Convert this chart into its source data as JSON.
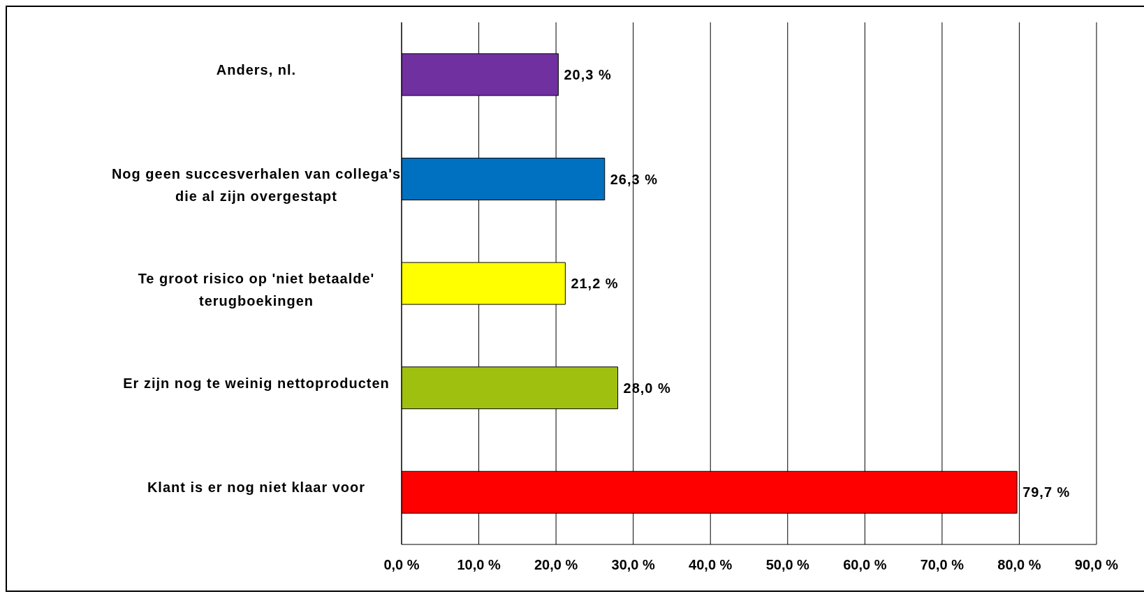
{
  "chart_data": {
    "type": "bar",
    "orientation": "horizontal",
    "categories": [
      "Anders, nl.",
      "Nog geen succesverhalen van collega's die al zijn overgestapt",
      "Te groot risico op 'niet betaalde' terugboekingen",
      "Er zijn nog te weinig nettoproducten",
      "Klant is er nog niet klaar voor"
    ],
    "values": [
      20.3,
      26.3,
      21.2,
      28.0,
      79.7
    ],
    "colors": [
      "#7030a0",
      "#0070c0",
      "#ffff00",
      "#a0c010",
      "#ff0000"
    ],
    "value_labels": [
      "20,3 %",
      "26,3 %",
      "21,2 %",
      "28,0 %",
      "79,7 %"
    ],
    "xlim": [
      0,
      90
    ],
    "xticks": [
      {
        "value": 0,
        "label": "0,0 %"
      },
      {
        "value": 10,
        "label": "10,0 %"
      },
      {
        "value": 20,
        "label": "20,0 %"
      },
      {
        "value": 30,
        "label": "30,0 %"
      },
      {
        "value": 40,
        "label": "40,0 %"
      },
      {
        "value": 50,
        "label": "50,0 %"
      },
      {
        "value": 60,
        "label": "60,0 %"
      },
      {
        "value": 70,
        "label": "70,0 %"
      },
      {
        "value": 80,
        "label": "80,0 %"
      },
      {
        "value": 90,
        "label": "90,0 %"
      }
    ],
    "grid": "x"
  }
}
